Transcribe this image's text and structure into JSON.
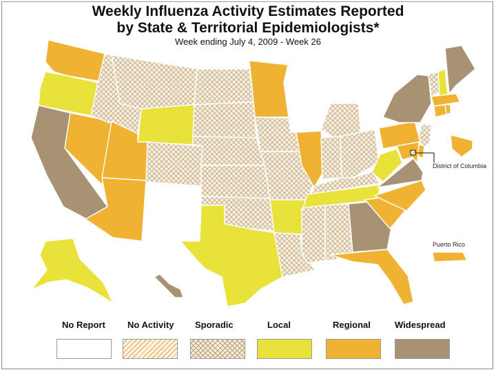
{
  "title_line1": "Weekly Influenza Activity Estimates Reported",
  "title_line2": "by State & Territorial Epidemiologists*",
  "subtitle": "Week ending July 4, 2009 - Week 26",
  "callouts": {
    "dc": "District of Columbia",
    "pr": "Puerto Rico"
  },
  "legend": [
    {
      "label": "No Report",
      "key": "no_report",
      "color": "#ffffff"
    },
    {
      "label": "No Activity",
      "key": "no_activity",
      "color": "#f3c98a"
    },
    {
      "label": "Sporadic",
      "key": "sporadic",
      "color": "#e8dcc0"
    },
    {
      "label": "Local",
      "key": "local",
      "color": "#e8e23a"
    },
    {
      "label": "Regional",
      "key": "regional",
      "color": "#f0b232"
    },
    {
      "label": "Widespread",
      "key": "widespread",
      "color": "#a89274"
    }
  ],
  "states": {
    "WA": "regional",
    "OR": "local",
    "CA": "widespread",
    "NV": "regional",
    "ID": "sporadic",
    "MT": "sporadic",
    "WY": "local",
    "UT": "regional",
    "AZ": "regional",
    "CO": "sporadic",
    "NM": "no_report",
    "ND": "sporadic",
    "SD": "sporadic",
    "NE": "sporadic",
    "KS": "sporadic",
    "OK": "sporadic",
    "TX": "local",
    "MN": "regional",
    "IA": "sporadic",
    "MO": "sporadic",
    "AR": "local",
    "LA": "sporadic",
    "WI": "no_report",
    "IL": "regional",
    "MI": "sporadic",
    "IN": "sporadic",
    "OH": "sporadic",
    "KY": "sporadic",
    "TN": "local",
    "MS": "sporadic",
    "AL": "sporadic",
    "GA": "widespread",
    "FL": "regional",
    "SC": "regional",
    "NC": "regional",
    "VA": "widespread",
    "WV": "local",
    "PA": "regional",
    "NY": "widespread",
    "VT": "sporadic",
    "NH": "local",
    "ME": "widespread",
    "MA": "regional",
    "CT": "regional",
    "RI": "regional",
    "NJ": "sporadic",
    "DE": "regional",
    "MD": "regional",
    "DC": "no_activity",
    "AK": "local",
    "HI": "widespread",
    "PR": "regional"
  }
}
